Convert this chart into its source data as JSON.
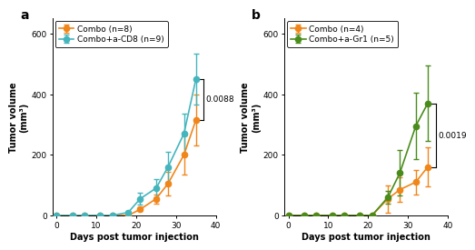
{
  "panel_a": {
    "title_label": "a",
    "xlabel": "Days post tumor injection",
    "ylabel": "Tumor volume\n(mm³)",
    "ylim": [
      0,
      650
    ],
    "xlim": [
      -1,
      40
    ],
    "yticks": [
      0,
      200,
      400,
      600
    ],
    "xticks": [
      0,
      10,
      20,
      30,
      40
    ],
    "series": [
      {
        "label": "Combo (n=8)",
        "color": "#F0861A",
        "x": [
          0,
          4,
          7,
          11,
          14,
          18,
          21,
          25,
          28,
          32,
          35
        ],
        "y": [
          0,
          0,
          0,
          0,
          0,
          0,
          20,
          55,
          105,
          200,
          315
        ],
        "yerr": [
          0,
          0,
          0,
          0,
          0,
          0,
          6,
          15,
          40,
          65,
          85
        ]
      },
      {
        "label": "Combo+a-CD8 (n=9)",
        "color": "#45B5BD",
        "x": [
          0,
          4,
          7,
          11,
          14,
          18,
          21,
          25,
          28,
          32,
          35
        ],
        "y": [
          0,
          0,
          0,
          0,
          0,
          10,
          55,
          90,
          160,
          270,
          450
        ],
        "yerr": [
          0,
          0,
          0,
          0,
          0,
          5,
          20,
          30,
          50,
          65,
          85
        ]
      }
    ],
    "pvalue": "0.0088",
    "bracket_y1": 315,
    "bracket_y2": 450,
    "bracket_mid": 383
  },
  "panel_b": {
    "title_label": "b",
    "xlabel": "Days post tumor injection",
    "ylabel": "Tumor volume\n(mm³)",
    "ylim": [
      0,
      650
    ],
    "xlim": [
      -1,
      40
    ],
    "yticks": [
      0,
      200,
      400,
      600
    ],
    "xticks": [
      0,
      10,
      20,
      30,
      40
    ],
    "series": [
      {
        "label": "Combo (n=4)",
        "color": "#F0861A",
        "x": [
          0,
          4,
          7,
          11,
          14,
          18,
          21,
          25,
          28,
          32,
          35
        ],
        "y": [
          0,
          0,
          0,
          0,
          0,
          0,
          0,
          55,
          85,
          110,
          160
        ],
        "yerr": [
          0,
          0,
          0,
          0,
          0,
          0,
          0,
          45,
          40,
          40,
          65
        ]
      },
      {
        "label": "Combo+a-Gr1 (n=5)",
        "color": "#4A8C1C",
        "x": [
          0,
          4,
          7,
          11,
          14,
          18,
          21,
          25,
          28,
          32,
          35
        ],
        "y": [
          0,
          0,
          0,
          0,
          0,
          0,
          0,
          60,
          140,
          295,
          370
        ],
        "yerr": [
          0,
          0,
          0,
          0,
          0,
          0,
          0,
          20,
          75,
          110,
          125
        ]
      }
    ],
    "pvalue": "0.0019",
    "bracket_y1": 160,
    "bracket_y2": 370,
    "bracket_mid": 265
  },
  "marker_size": 4.5,
  "linewidth": 1.2,
  "capsize": 2.5,
  "elinewidth": 1.0,
  "legend_fontsize": 6.5,
  "axis_label_fontsize": 7,
  "tick_fontsize": 6.5,
  "panel_label_fontsize": 10,
  "pvalue_fontsize": 6.5
}
